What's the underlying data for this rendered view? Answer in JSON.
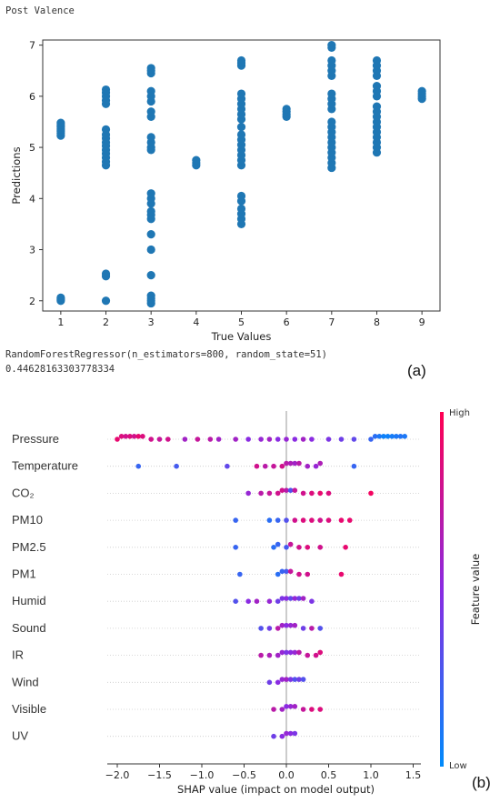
{
  "header": {
    "title": "Post Valence",
    "model_line": "RandomForestRegressor(n_estimators=800, random_state=51)",
    "score_line": "0.44628163303778334",
    "panel_a": "(a)",
    "panel_b": "(b)"
  },
  "chart_data": [
    {
      "type": "scatter",
      "title": "",
      "xlabel": "True Values",
      "ylabel": "Predictions",
      "xlim": [
        0.6,
        9.4
      ],
      "ylim": [
        1.8,
        7.1
      ],
      "xticks": [
        1,
        2,
        3,
        4,
        5,
        6,
        7,
        8,
        9
      ],
      "yticks": [
        2,
        3,
        4,
        5,
        6,
        7
      ],
      "point_color": "#1f77b4",
      "groups": [
        {
          "x": 1,
          "y": [
            2.0,
            2.03,
            2.06,
            5.23,
            5.28,
            5.32,
            5.36,
            5.4,
            5.44,
            5.48
          ]
        },
        {
          "x": 2,
          "y": [
            2.0,
            2.48,
            2.53,
            4.65,
            4.72,
            4.8,
            4.88,
            4.95,
            5.03,
            5.1,
            5.18,
            5.25,
            5.35,
            5.85,
            5.92,
            6.0,
            6.07,
            6.13
          ]
        },
        {
          "x": 3,
          "y": [
            1.95,
            2.0,
            2.05,
            2.1,
            2.5,
            3.0,
            3.3,
            3.6,
            3.68,
            3.75,
            3.9,
            4.0,
            4.1,
            4.95,
            5.0,
            5.1,
            5.2,
            5.6,
            5.7,
            5.9,
            6.0,
            6.1,
            6.45,
            6.5,
            6.55
          ]
        },
        {
          "x": 4,
          "y": [
            4.65,
            4.7,
            4.75
          ]
        },
        {
          "x": 5,
          "y": [
            3.5,
            3.6,
            3.7,
            3.8,
            3.95,
            4.05,
            4.65,
            4.75,
            4.85,
            4.95,
            5.05,
            5.15,
            5.25,
            5.4,
            5.55,
            5.65,
            5.75,
            5.85,
            5.95,
            6.05,
            6.6,
            6.65,
            6.7
          ]
        },
        {
          "x": 6,
          "y": [
            5.6,
            5.65,
            5.7,
            5.75
          ]
        },
        {
          "x": 7,
          "y": [
            4.6,
            4.7,
            4.8,
            4.9,
            5.0,
            5.1,
            5.2,
            5.3,
            5.4,
            5.5,
            5.75,
            5.85,
            5.95,
            6.05,
            6.4,
            6.5,
            6.6,
            6.7,
            6.95,
            7.0
          ]
        },
        {
          "x": 8,
          "y": [
            4.9,
            5.0,
            5.1,
            5.2,
            5.3,
            5.4,
            5.5,
            5.6,
            5.7,
            5.8,
            6.0,
            6.1,
            6.2,
            6.4,
            6.5,
            6.6,
            6.7
          ]
        },
        {
          "x": 9,
          "y": [
            5.95,
            6.0,
            6.05,
            6.1
          ]
        }
      ]
    },
    {
      "type": "scatter",
      "subtype": "shap_beeswarm",
      "title": "",
      "xlabel": "SHAP value (impact on model output)",
      "xlim": [
        -2.1,
        1.55
      ],
      "xticks": [
        -2.0,
        -1.5,
        -1.0,
        -0.5,
        0.0,
        0.5,
        1.0,
        1.5
      ],
      "colorbar": {
        "label": "Feature value",
        "high": "High",
        "low": "Low",
        "high_color": "#ff0052",
        "mid_color": "#8a2be2",
        "low_color": "#008bfb"
      },
      "features": [
        {
          "name": "Pressure",
          "points": [
            [
              -2.0,
              0.9
            ],
            [
              -1.95,
              0.85
            ],
            [
              -1.9,
              0.8
            ],
            [
              -1.85,
              0.85
            ],
            [
              -1.8,
              0.8
            ],
            [
              -1.75,
              0.9
            ],
            [
              -1.7,
              0.85
            ],
            [
              -1.6,
              0.8
            ],
            [
              -1.5,
              0.75
            ],
            [
              -1.4,
              0.8
            ],
            [
              -1.2,
              0.6
            ],
            [
              -1.05,
              0.75
            ],
            [
              -0.9,
              0.7
            ],
            [
              -0.8,
              0.6
            ],
            [
              -0.6,
              0.6
            ],
            [
              -0.45,
              0.5
            ],
            [
              -0.3,
              0.55
            ],
            [
              -0.2,
              0.6
            ],
            [
              -0.1,
              0.5
            ],
            [
              0.0,
              0.55
            ],
            [
              0.1,
              0.5
            ],
            [
              0.2,
              0.6
            ],
            [
              0.3,
              0.5
            ],
            [
              0.5,
              0.45
            ],
            [
              0.65,
              0.4
            ],
            [
              0.8,
              0.35
            ],
            [
              1.0,
              0.2
            ],
            [
              1.05,
              0.15
            ],
            [
              1.1,
              0.1
            ],
            [
              1.15,
              0.05
            ],
            [
              1.2,
              0.05
            ],
            [
              1.25,
              0.08
            ],
            [
              1.3,
              0.1
            ],
            [
              1.35,
              0.12
            ],
            [
              1.4,
              0.1
            ]
          ]
        },
        {
          "name": "Temperature",
          "points": [
            [
              -1.75,
              0.2
            ],
            [
              -1.3,
              0.25
            ],
            [
              -0.7,
              0.35
            ],
            [
              -0.35,
              0.8
            ],
            [
              -0.25,
              0.7
            ],
            [
              -0.15,
              0.75
            ],
            [
              -0.05,
              0.8
            ],
            [
              0.0,
              0.7
            ],
            [
              0.05,
              0.65
            ],
            [
              0.1,
              0.6
            ],
            [
              0.15,
              0.7
            ],
            [
              0.25,
              0.6
            ],
            [
              0.35,
              0.55
            ],
            [
              0.4,
              0.65
            ],
            [
              0.8,
              0.2
            ]
          ]
        },
        {
          "name": "CO₂",
          "points": [
            [
              -0.45,
              0.55
            ],
            [
              -0.3,
              0.7
            ],
            [
              -0.2,
              0.75
            ],
            [
              -0.1,
              0.8
            ],
            [
              -0.05,
              0.8
            ],
            [
              0.0,
              0.7
            ],
            [
              0.05,
              0.3
            ],
            [
              0.1,
              0.75
            ],
            [
              0.2,
              0.8
            ],
            [
              0.3,
              0.85
            ],
            [
              0.4,
              0.9
            ],
            [
              0.5,
              0.85
            ],
            [
              1.0,
              0.95
            ]
          ]
        },
        {
          "name": "PM10",
          "points": [
            [
              -0.6,
              0.2
            ],
            [
              -0.2,
              0.15
            ],
            [
              -0.1,
              0.2
            ],
            [
              0.0,
              0.3
            ],
            [
              0.1,
              0.8
            ],
            [
              0.2,
              0.85
            ],
            [
              0.3,
              0.85
            ],
            [
              0.4,
              0.8
            ],
            [
              0.5,
              0.85
            ],
            [
              0.65,
              0.9
            ],
            [
              0.75,
              0.9
            ]
          ]
        },
        {
          "name": "PM2.5",
          "points": [
            [
              -0.6,
              0.2
            ],
            [
              -0.15,
              0.15
            ],
            [
              -0.1,
              0.2
            ],
            [
              0.0,
              0.25
            ],
            [
              0.05,
              0.75
            ],
            [
              0.15,
              0.8
            ],
            [
              0.25,
              0.85
            ],
            [
              0.4,
              0.8
            ],
            [
              0.7,
              0.9
            ]
          ]
        },
        {
          "name": "PM1",
          "points": [
            [
              -0.55,
              0.2
            ],
            [
              -0.1,
              0.15
            ],
            [
              -0.05,
              0.2
            ],
            [
              0.0,
              0.25
            ],
            [
              0.05,
              0.75
            ],
            [
              0.15,
              0.8
            ],
            [
              0.25,
              0.8
            ],
            [
              0.65,
              0.9
            ]
          ]
        },
        {
          "name": "Humid",
          "points": [
            [
              -0.6,
              0.3
            ],
            [
              -0.45,
              0.5
            ],
            [
              -0.35,
              0.6
            ],
            [
              -0.2,
              0.55
            ],
            [
              -0.1,
              0.4
            ],
            [
              -0.05,
              0.45
            ],
            [
              0.0,
              0.5
            ],
            [
              0.05,
              0.35
            ],
            [
              0.1,
              0.55
            ],
            [
              0.15,
              0.4
            ],
            [
              0.2,
              0.6
            ],
            [
              0.3,
              0.45
            ]
          ]
        },
        {
          "name": "Sound",
          "points": [
            [
              -0.3,
              0.3
            ],
            [
              -0.2,
              0.4
            ],
            [
              -0.1,
              0.7
            ],
            [
              -0.05,
              0.6
            ],
            [
              0.0,
              0.5
            ],
            [
              0.05,
              0.55
            ],
            [
              0.1,
              0.6
            ],
            [
              0.2,
              0.4
            ],
            [
              0.3,
              0.7
            ],
            [
              0.4,
              0.3
            ]
          ]
        },
        {
          "name": "IR",
          "points": [
            [
              -0.3,
              0.7
            ],
            [
              -0.2,
              0.65
            ],
            [
              -0.1,
              0.6
            ],
            [
              -0.05,
              0.55
            ],
            [
              0.0,
              0.45
            ],
            [
              0.05,
              0.5
            ],
            [
              0.1,
              0.55
            ],
            [
              0.15,
              0.7
            ],
            [
              0.25,
              0.75
            ],
            [
              0.35,
              0.8
            ],
            [
              0.4,
              0.85
            ]
          ]
        },
        {
          "name": "Wind",
          "points": [
            [
              -0.2,
              0.4
            ],
            [
              -0.1,
              0.5
            ],
            [
              -0.05,
              0.55
            ],
            [
              0.0,
              0.6
            ],
            [
              0.05,
              0.45
            ],
            [
              0.1,
              0.3
            ],
            [
              0.15,
              0.4
            ],
            [
              0.2,
              0.3
            ]
          ]
        },
        {
          "name": "Visible",
          "points": [
            [
              -0.15,
              0.7
            ],
            [
              -0.05,
              0.6
            ],
            [
              0.0,
              0.5
            ],
            [
              0.05,
              0.55
            ],
            [
              0.1,
              0.6
            ],
            [
              0.2,
              0.75
            ],
            [
              0.3,
              0.85
            ],
            [
              0.4,
              0.85
            ]
          ]
        },
        {
          "name": "UV",
          "points": [
            [
              -0.15,
              0.4
            ],
            [
              -0.05,
              0.5
            ],
            [
              0.0,
              0.55
            ],
            [
              0.05,
              0.5
            ],
            [
              0.1,
              0.45
            ]
          ]
        }
      ]
    }
  ]
}
